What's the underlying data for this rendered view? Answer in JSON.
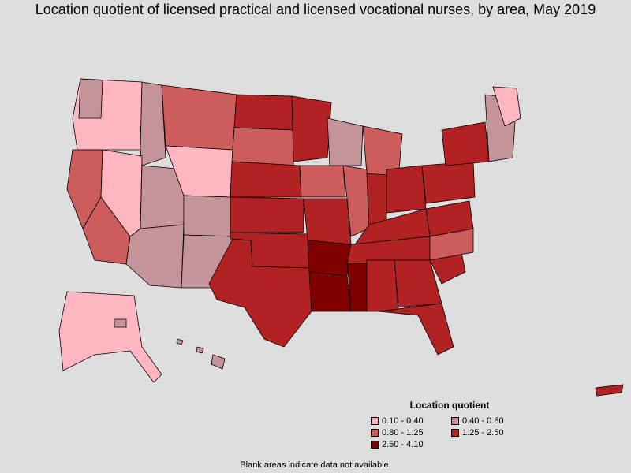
{
  "title": "Location quotient of licensed practical and licensed vocational nurses, by area, May 2019",
  "legend": {
    "title": "Location quotient",
    "items": [
      {
        "label": "0.10 - 0.40",
        "color": "#ffb6c1"
      },
      {
        "label": "0.40 - 0.80",
        "color": "#c59499"
      },
      {
        "label": "0.80 - 1.25",
        "color": "#cd5c5c"
      },
      {
        "label": "1.25 - 2.50",
        "color": "#b22222"
      },
      {
        "label": "2.50 - 4.10",
        "color": "#800000"
      }
    ]
  },
  "footnote": "Blank areas indicate data not available.",
  "colors": {
    "background": "#dedede",
    "border": "#000000"
  }
}
